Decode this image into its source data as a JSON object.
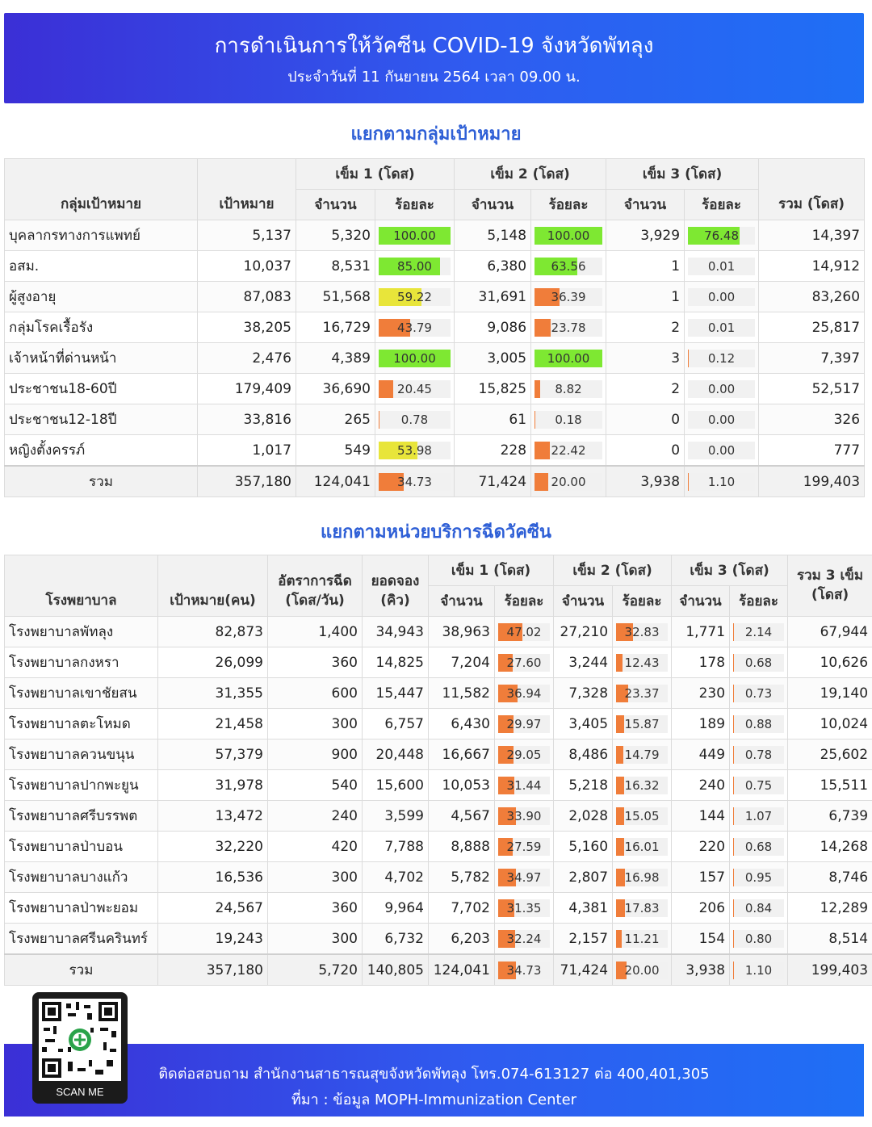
{
  "header": {
    "title": "การดำเนินการให้วัคซีน COVID-19 จังหวัดพัทลุง",
    "subtitle": "ประจำวันที่ 11 กันยายน 2564 เวลา 09.00 น."
  },
  "colors": {
    "green": "#7ee832",
    "yellow": "#e8e53a",
    "orange": "#f07d3a",
    "blue": "#2f5cf0"
  },
  "section1": {
    "title": "แยกตามกลุ่มเป้าหมาย",
    "headers": {
      "group": "กลุ่มเป้าหมาย",
      "target": "เป้าหมาย",
      "dose1": "เข็ม 1 (โดส)",
      "dose2": "เข็ม 2 (โดส)",
      "dose3": "เข็ม 3 (โดส)",
      "count": "จำนวน",
      "percent": "ร้อยละ",
      "total": "รวม (โดส)"
    },
    "rows": [
      {
        "name": "บุคลากรทางการแพทย์",
        "target": "5,137",
        "d1": "5,320",
        "p1": "100.00",
        "d2": "5,148",
        "p2": "100.00",
        "d3": "3,929",
        "p3": "76.48",
        "total": "14,397"
      },
      {
        "name": "อสม.",
        "target": "10,037",
        "d1": "8,531",
        "p1": "85.00",
        "d2": "6,380",
        "p2": "63.56",
        "d3": "1",
        "p3": "0.01",
        "total": "14,912"
      },
      {
        "name": "ผู้สูงอายุ",
        "target": "87,083",
        "d1": "51,568",
        "p1": "59.22",
        "d2": "31,691",
        "p2": "36.39",
        "d3": "1",
        "p3": "0.00",
        "total": "83,260"
      },
      {
        "name": "กลุ่มโรคเรื้อรัง",
        "target": "38,205",
        "d1": "16,729",
        "p1": "43.79",
        "d2": "9,086",
        "p2": "23.78",
        "d3": "2",
        "p3": "0.01",
        "total": "25,817"
      },
      {
        "name": "เจ้าหน้าที่ด่านหน้า",
        "target": "2,476",
        "d1": "4,389",
        "p1": "100.00",
        "d2": "3,005",
        "p2": "100.00",
        "d3": "3",
        "p3": "0.12",
        "total": "7,397"
      },
      {
        "name": "ประชาชน18-60ปี",
        "target": "179,409",
        "d1": "36,690",
        "p1": "20.45",
        "d2": "15,825",
        "p2": "8.82",
        "d3": "2",
        "p3": "0.00",
        "total": "52,517"
      },
      {
        "name": "ประชาชน12-18ปี",
        "target": "33,816",
        "d1": "265",
        "p1": "0.78",
        "d2": "61",
        "p2": "0.18",
        "d3": "0",
        "p3": "0.00",
        "total": "326"
      },
      {
        "name": "หญิงตั้งครรภ์",
        "target": "1,017",
        "d1": "549",
        "p1": "53.98",
        "d2": "228",
        "p2": "22.42",
        "d3": "0",
        "p3": "0.00",
        "total": "777"
      }
    ],
    "total": {
      "name": "รวม",
      "target": "357,180",
      "d1": "124,041",
      "p1": "34.73",
      "d2": "71,424",
      "p2": "20.00",
      "d3": "3,938",
      "p3": "1.10",
      "total": "199,403"
    }
  },
  "section2": {
    "title": "แยกตามหน่วยบริการฉีดวัคซีน",
    "headers": {
      "hospital": "โรงพยาบาล",
      "target": "เป้าหมาย(คน)",
      "rate1": "อัตราการฉีด",
      "rate2": "(โดส/วัน)",
      "booking1": "ยอดจอง",
      "booking2": "(คิว)",
      "dose1": "เข็ม 1 (โดส)",
      "dose2": "เข็ม 2 (โดส)",
      "dose3": "เข็ม 3 (โดส)",
      "count": "จำนวน",
      "percent": "ร้อยละ",
      "total1": "รวม 3 เข็ม",
      "total2": "(โดส)"
    },
    "rows": [
      {
        "name": "โรงพยาบาลพัทลุง",
        "target": "82,873",
        "rate": "1,400",
        "booking": "34,943",
        "d1": "38,963",
        "p1": "47.02",
        "d2": "27,210",
        "p2": "32.83",
        "d3": "1,771",
        "p3": "2.14",
        "total": "67,944"
      },
      {
        "name": "โรงพยาบาลกงหรา",
        "target": "26,099",
        "rate": "360",
        "booking": "14,825",
        "d1": "7,204",
        "p1": "27.60",
        "d2": "3,244",
        "p2": "12.43",
        "d3": "178",
        "p3": "0.68",
        "total": "10,626"
      },
      {
        "name": "โรงพยาบาลเขาชัยสน",
        "target": "31,355",
        "rate": "600",
        "booking": "15,447",
        "d1": "11,582",
        "p1": "36.94",
        "d2": "7,328",
        "p2": "23.37",
        "d3": "230",
        "p3": "0.73",
        "total": "19,140"
      },
      {
        "name": "โรงพยาบาลตะโหมด",
        "target": "21,458",
        "rate": "300",
        "booking": "6,757",
        "d1": "6,430",
        "p1": "29.97",
        "d2": "3,405",
        "p2": "15.87",
        "d3": "189",
        "p3": "0.88",
        "total": "10,024"
      },
      {
        "name": "โรงพยาบาลควนขนุน",
        "target": "57,379",
        "rate": "900",
        "booking": "20,448",
        "d1": "16,667",
        "p1": "29.05",
        "d2": "8,486",
        "p2": "14.79",
        "d3": "449",
        "p3": "0.78",
        "total": "25,602"
      },
      {
        "name": "โรงพยาบาลปากพะยูน",
        "target": "31,978",
        "rate": "540",
        "booking": "15,600",
        "d1": "10,053",
        "p1": "31.44",
        "d2": "5,218",
        "p2": "16.32",
        "d3": "240",
        "p3": "0.75",
        "total": "15,511"
      },
      {
        "name": "โรงพยาบาลศรีบรรพต",
        "target": "13,472",
        "rate": "240",
        "booking": "3,599",
        "d1": "4,567",
        "p1": "33.90",
        "d2": "2,028",
        "p2": "15.05",
        "d3": "144",
        "p3": "1.07",
        "total": "6,739"
      },
      {
        "name": "โรงพยาบาลป่าบอน",
        "target": "32,220",
        "rate": "420",
        "booking": "7,788",
        "d1": "8,888",
        "p1": "27.59",
        "d2": "5,160",
        "p2": "16.01",
        "d3": "220",
        "p3": "0.68",
        "total": "14,268"
      },
      {
        "name": "โรงพยาบาลบางแก้ว",
        "target": "16,536",
        "rate": "300",
        "booking": "4,702",
        "d1": "5,782",
        "p1": "34.97",
        "d2": "2,807",
        "p2": "16.98",
        "d3": "157",
        "p3": "0.95",
        "total": "8,746"
      },
      {
        "name": "โรงพยาบาลป่าพะยอม",
        "target": "24,567",
        "rate": "360",
        "booking": "9,964",
        "d1": "7,702",
        "p1": "31.35",
        "d2": "4,381",
        "p2": "17.83",
        "d3": "206",
        "p3": "0.84",
        "total": "12,289"
      },
      {
        "name": "โรงพยาบาลศรีนครินทร์",
        "target": "19,243",
        "rate": "300",
        "booking": "6,732",
        "d1": "6,203",
        "p1": "32.24",
        "d2": "2,157",
        "p2": "11.21",
        "d3": "154",
        "p3": "0.80",
        "total": "8,514"
      }
    ],
    "total": {
      "name": "รวม",
      "target": "357,180",
      "rate": "5,720",
      "booking": "140,805",
      "d1": "124,041",
      "p1": "34.73",
      "d2": "71,424",
      "p2": "20.00",
      "d3": "3,938",
      "p3": "1.10",
      "total": "199,403"
    }
  },
  "qr": {
    "caption": "SCAN ME"
  },
  "footer": {
    "contact": "ติดต่อสอบถาม สำนักงานสาธารณสุขจังหวัดพัทลุง โทร.074-613127 ต่อ 400,401,305",
    "source": "ที่มา : ข้อมูล MOPH-Immunization Center"
  }
}
